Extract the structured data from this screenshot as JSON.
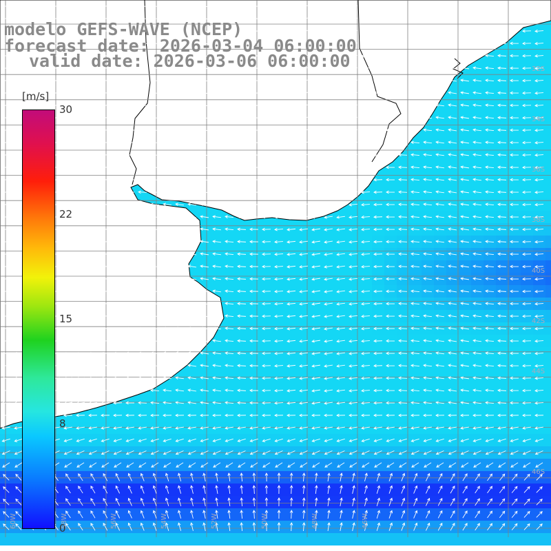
{
  "title": {
    "line1": "modelo GEFS-WAVE (NCEP)",
    "line2": "forecast date: 2026-03-04 06:00:00",
    "line3": "valid date: 2026-03-06 06:00:00"
  },
  "colorbar": {
    "unit": "[m/s]",
    "ticks": [
      "30",
      "22",
      "15",
      "8",
      "0"
    ],
    "colors": [
      "#1010ff",
      "#0ac8ff",
      "#2ee89a",
      "#f2f20a",
      "#ff1e0a",
      "#c20c7a"
    ]
  },
  "lat_labels": [
    "32S",
    "34S",
    "36S",
    "38S",
    "40S",
    "42S",
    "44S",
    "46S"
  ],
  "lon_labels": [
    "60W",
    "58W",
    "56W",
    "54W",
    "52W",
    "50W",
    "48W",
    "46W"
  ],
  "palette": {
    "land": "#ffffff",
    "coast": "#000000",
    "grid": "#808080"
  }
}
